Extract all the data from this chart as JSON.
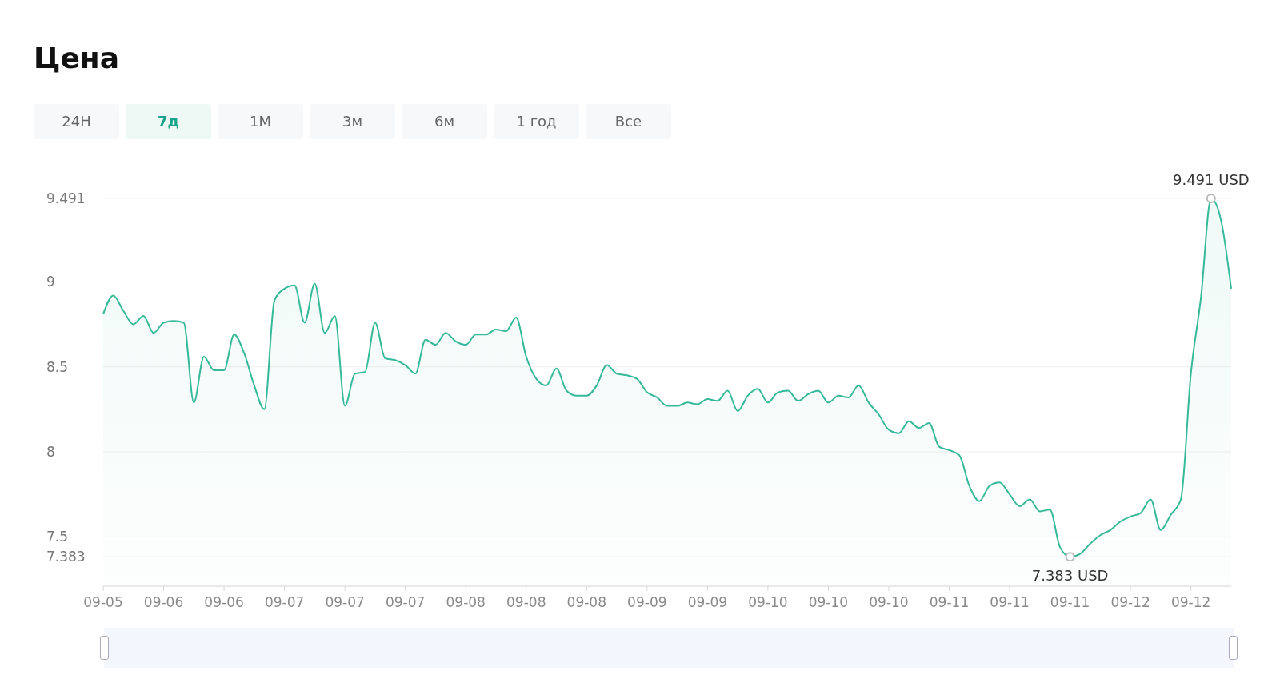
{
  "chart_data": {
    "type": "area",
    "title": "Цена",
    "annotations": [
      "24Н",
      "7д",
      "1М",
      "3м",
      "6м",
      "1 год",
      "Все",
      {
        "text": "9.491 USD",
        "y": 9.491
      },
      {
        "text": "7.383 USD",
        "y": 7.383
      }
    ],
    "categories": [
      "09-05",
      null,
      null,
      null,
      null,
      null,
      "09-06",
      null,
      null,
      null,
      null,
      null,
      "09-06",
      null,
      null,
      null,
      null,
      null,
      "09-07",
      null,
      null,
      null,
      null,
      null,
      "09-07",
      null,
      null,
      null,
      null,
      null,
      "09-07",
      null,
      null,
      null,
      null,
      null,
      "09-08",
      null,
      null,
      null,
      null,
      null,
      "09-08",
      null,
      null,
      null,
      null,
      null,
      "09-08",
      null,
      null,
      null,
      null,
      null,
      "09-09",
      null,
      null,
      null,
      null,
      null,
      "09-09",
      null,
      null,
      null,
      null,
      null,
      "09-10",
      null,
      null,
      null,
      null,
      null,
      "09-10",
      null,
      null,
      null,
      null,
      null,
      "09-10",
      null,
      null,
      null,
      null,
      null,
      "09-11",
      null,
      null,
      null,
      null,
      null,
      "09-11",
      null,
      null,
      null,
      null,
      null,
      "09-11",
      null,
      null,
      null,
      null,
      null,
      "09-12",
      null,
      null,
      null,
      null,
      null,
      "09-12",
      null,
      null,
      null,
      null
    ],
    "series": [
      {
        "color": "#35b99a",
        "values": [
          8.81,
          8.92,
          8.83,
          8.75,
          8.8,
          8.7,
          8.76,
          8.77,
          8.76,
          8.29,
          8.56,
          8.48,
          8.48,
          8.69,
          8.58,
          8.39,
          8.25,
          8.89,
          8.96,
          8.98,
          8.76,
          8.99,
          8.7,
          8.8,
          8.27,
          8.46,
          8.47,
          8.76,
          8.55,
          8.54,
          8.51,
          8.46,
          8.66,
          8.63,
          8.7,
          8.65,
          8.63,
          8.69,
          8.69,
          8.72,
          8.71,
          8.79,
          8.56,
          8.43,
          8.39,
          8.49,
          8.36,
          8.33,
          8.33,
          8.39,
          8.51,
          8.46,
          8.45,
          8.43,
          8.35,
          8.32,
          8.27,
          8.27,
          8.29,
          8.28,
          8.31,
          8.3,
          8.36,
          8.24,
          8.33,
          8.37,
          8.29,
          8.35,
          8.36,
          8.3,
          8.34,
          8.36,
          8.29,
          8.33,
          8.32,
          8.39,
          8.29,
          8.22,
          8.13,
          8.11,
          8.18,
          8.14,
          8.17,
          8.03,
          8.01,
          7.98,
          7.8,
          7.71,
          7.8,
          7.82,
          7.75,
          7.68,
          7.72,
          7.65,
          7.66,
          7.44,
          7.383,
          7.4,
          7.46,
          7.51,
          7.54,
          7.59,
          7.62,
          7.64,
          7.72,
          7.54,
          7.63,
          7.72,
          8.46,
          8.91,
          9.491,
          9.36,
          8.96
        ]
      }
    ],
    "ylim": [
      7.21,
      9.491
    ],
    "yticks": [
      7.383,
      7.5,
      8,
      8.5,
      9,
      9.491
    ],
    "grid": "y"
  }
}
